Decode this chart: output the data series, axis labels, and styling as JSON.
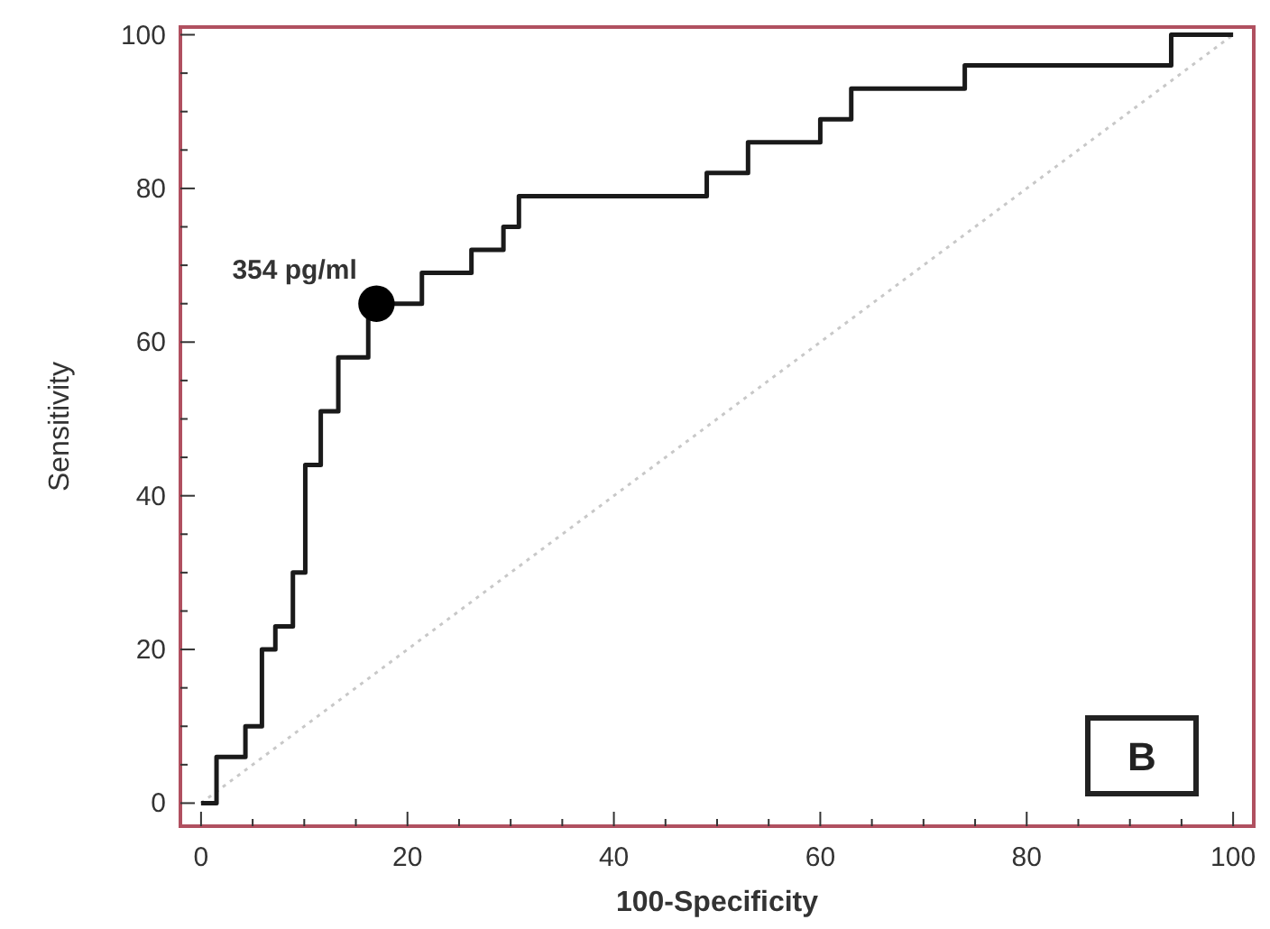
{
  "chart_data": {
    "type": "step",
    "xlabel": "100-Specificity",
    "ylabel": "Sensitivity",
    "xlim": [
      -2,
      102
    ],
    "ylim": [
      -3,
      101
    ],
    "xticks": [
      0,
      {
        "value": 5,
        "label": null
      },
      {
        "value": 10,
        "label": null
      },
      {
        "value": 15,
        "label": null
      },
      20,
      {
        "value": 25,
        "label": null
      },
      {
        "value": 30,
        "label": null
      },
      {
        "value": 35,
        "label": null
      },
      40,
      {
        "value": 45,
        "label": null
      },
      {
        "value": 50,
        "label": null
      },
      {
        "value": 55,
        "label": null
      },
      60,
      {
        "value": 65,
        "label": null
      },
      {
        "value": 70,
        "label": null
      },
      {
        "value": 75,
        "label": null
      },
      80,
      {
        "value": 85,
        "label": null
      },
      {
        "value": 90,
        "label": null
      },
      {
        "value": 95,
        "label": null
      },
      100
    ],
    "yticks": [
      0,
      {
        "value": 5,
        "label": null
      },
      {
        "value": 10,
        "label": null
      },
      {
        "value": 15,
        "label": null
      },
      20,
      {
        "value": 25,
        "label": null
      },
      {
        "value": 30,
        "label": null
      },
      {
        "value": 35,
        "label": null
      },
      40,
      {
        "value": 45,
        "label": null
      },
      {
        "value": 50,
        "label": null
      },
      {
        "value": 55,
        "label": null
      },
      60,
      {
        "value": 65,
        "label": null
      },
      {
        "value": 70,
        "label": null
      },
      {
        "value": 75,
        "label": null
      },
      80,
      {
        "value": 85,
        "label": null
      },
      {
        "value": 90,
        "label": null
      },
      {
        "value": 95,
        "label": null
      },
      100
    ],
    "grid": false,
    "series": [
      {
        "type": "line",
        "color": "#c8c8c8",
        "line_style": "dotted",
        "x": [
          0,
          100
        ],
        "values": [
          0,
          100
        ]
      },
      {
        "type": "step",
        "color": "#1a1a1a",
        "x": [
          0,
          1.5,
          4.3,
          5.9,
          7.2,
          8.9,
          10.1,
          11.6,
          13.3,
          16.2,
          21.4,
          26.2,
          29.3,
          30.8,
          49,
          53,
          60,
          63,
          74,
          94,
          100
        ],
        "values": [
          0,
          6,
          10,
          20,
          23,
          30,
          44,
          51,
          58,
          65,
          69,
          72,
          75,
          79,
          82,
          86,
          89,
          93,
          96,
          100,
          100
        ]
      },
      {
        "type": "scatter",
        "color": "#000000",
        "marker": "circle",
        "x": [
          17
        ],
        "values": [
          65
        ]
      }
    ],
    "annotations": [
      {
        "text": "354 pg/ml",
        "x": 17,
        "y": 65
      },
      "B"
    ]
  }
}
